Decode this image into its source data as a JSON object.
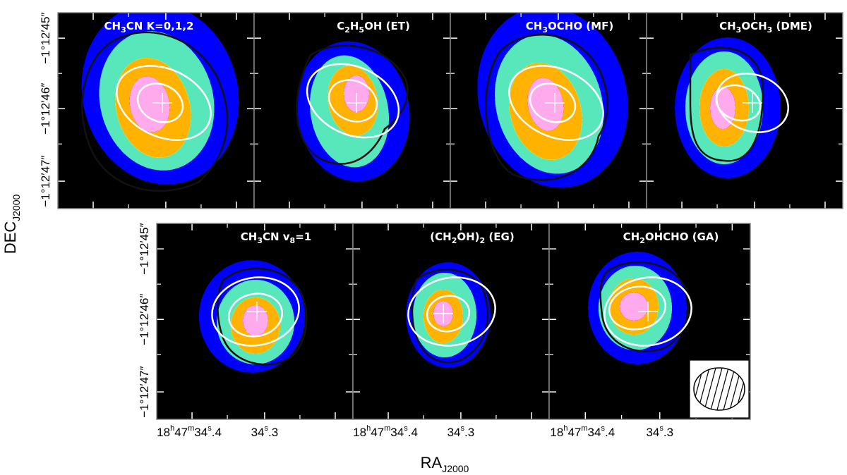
{
  "figure": {
    "ylabel_main": "DEC",
    "ylabel_sub": "J2000",
    "xlabel_main": "RA",
    "xlabel_sub": "J2000"
  },
  "chart_data": {
    "type": "heatmap",
    "grid": false,
    "contour_colors": {
      "outer": "#111111",
      "inner": "#ffffff"
    },
    "panels": [
      {
        "id": "ch3cn",
        "title": "CH3CN K=0,1,2",
        "title_parts": [
          [
            "CH",
            ""
          ],
          [
            "3",
            "sub"
          ],
          [
            "CN K=0,1,2",
            ""
          ]
        ]
      },
      {
        "id": "et",
        "title": "C2H5OH (ET)",
        "title_parts": [
          [
            "C",
            ""
          ],
          [
            "2",
            "sub"
          ],
          [
            "H",
            ""
          ],
          [
            "5",
            "sub"
          ],
          [
            "OH (ET)",
            ""
          ]
        ]
      },
      {
        "id": "mf",
        "title": "CH3OCHO (MF)",
        "title_parts": [
          [
            "CH",
            ""
          ],
          [
            "3",
            "sub"
          ],
          [
            "OCHO (MF)",
            ""
          ]
        ]
      },
      {
        "id": "dme",
        "title": "CH3OCH3 (DME)",
        "title_parts": [
          [
            "CH",
            ""
          ],
          [
            "3",
            "sub"
          ],
          [
            "OCH",
            ""
          ],
          [
            "3",
            "sub"
          ],
          [
            " (DME)",
            ""
          ]
        ]
      },
      {
        "id": "ch3cnv8",
        "title": "CH3CN v8=1",
        "title_parts": [
          [
            "CH",
            ""
          ],
          [
            "3",
            "sub"
          ],
          [
            "CN v",
            ""
          ],
          [
            "8",
            "sub"
          ],
          [
            "=1",
            ""
          ]
        ]
      },
      {
        "id": "eg",
        "title": "(CH2OH)2 (EG)",
        "title_parts": [
          [
            "(CH",
            ""
          ],
          [
            "2",
            "sub"
          ],
          [
            "OH)",
            ""
          ],
          [
            "2",
            "sub"
          ],
          [
            " (EG)",
            ""
          ]
        ]
      },
      {
        "id": "ga",
        "title": "CH2OHCHO (GA)",
        "title_parts": [
          [
            "CH",
            ""
          ],
          [
            "2",
            "sub"
          ],
          [
            "OHCHO (GA)",
            ""
          ]
        ],
        "has_beam": true
      }
    ],
    "dec_ticks": [
      {
        "prefix": "−1°12′",
        "value": "45",
        "suffix": "″"
      },
      {
        "prefix": "−1°12′",
        "value": "46",
        "suffix": "″"
      },
      {
        "prefix": "−1°12′",
        "value": "47",
        "suffix": "″"
      }
    ],
    "ra_ticks": [
      {
        "h": "18",
        "m": "47",
        "s": "34",
        "frac": "4",
        "full": true
      },
      {
        "s": "34",
        "frac": "3",
        "full": false
      }
    ]
  }
}
